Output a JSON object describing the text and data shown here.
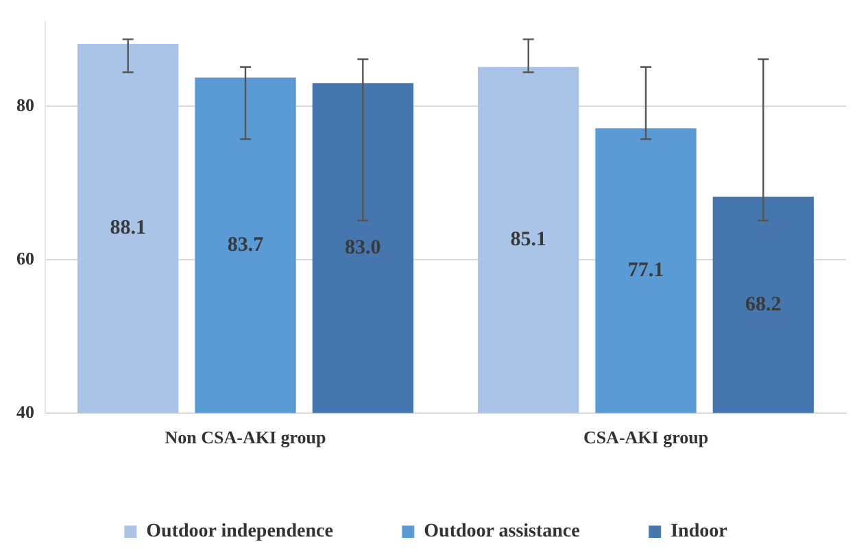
{
  "chart_data": {
    "type": "bar",
    "categories": [
      "Non CSA-AKI group",
      "CSA-AKI group"
    ],
    "series": [
      {
        "name": "Outdoor independence",
        "color": "#a9c4e6",
        "values": [
          88.1,
          85.1
        ],
        "errors": [
          [
            84.4,
            88.7
          ],
          [
            84.4,
            88.7
          ]
        ]
      },
      {
        "name": "Outdoor assistance",
        "color": "#5a9bd5",
        "values": [
          83.7,
          77.1
        ],
        "errors": [
          [
            75.7,
            85.1
          ],
          [
            75.7,
            85.1
          ]
        ]
      },
      {
        "name": "Indoor",
        "color": "#4577ae",
        "values": [
          83.0,
          68.2
        ],
        "errors": [
          [
            65.1,
            86.1
          ],
          [
            65.1,
            86.1
          ]
        ]
      }
    ],
    "ylim": [
      40,
      91
    ],
    "yticks": [
      40,
      60,
      80
    ],
    "grid": "y",
    "legend": "bottom",
    "value_labels": [
      [
        "88.1",
        "85.1"
      ],
      [
        "83.7",
        "77.1"
      ],
      [
        "83.0",
        "68.2"
      ]
    ]
  }
}
